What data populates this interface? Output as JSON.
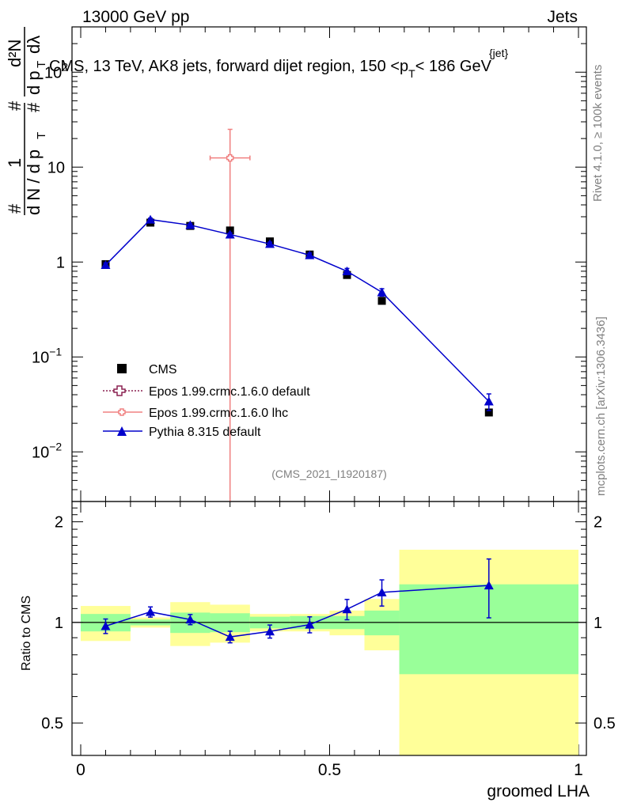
{
  "header": {
    "left": "13000 GeV pp",
    "right": "Jets"
  },
  "side_text": {
    "rivet": "Rivet 4.1.0, ≥ 100k events",
    "mcplots": "mcplots.cern.ch [arXiv:1306.3436]"
  },
  "title": {
    "main": "CMS, 13 TeV, AK8 jets, forward dijet region, 150 <p",
    "sub": "T",
    "sup": "{jet}",
    "tail": "< 186 GeV"
  },
  "ylabel": {
    "hash1": "#",
    "one": "1",
    "dN": "d N / d p",
    "T": "T",
    "hash2": "#",
    "d2N": "d²N",
    "hash3": "#",
    "dp": "d p",
    "T2": "T",
    "dl": "dλ"
  },
  "watermark": "(CMS_2021_I1920187)",
  "legend": [
    {
      "label": "CMS",
      "color": "#000000"
    },
    {
      "label": "Epos 1.99.crmc.1.6.0 default",
      "color": "#8b2252"
    },
    {
      "label": "Epos 1.99.crmc.1.6.0 lhc",
      "color": "#f08080"
    },
    {
      "label": "Pythia 8.315 default",
      "color": "#0000cc"
    }
  ],
  "ratio_ylabel": "Ratio to CMS",
  "xlabel": "groomed LHA",
  "colors": {
    "data": "#000000",
    "epos_default": "#8b2252",
    "epos_lhc": "#f08080",
    "pythia": "#0000cc",
    "band_stat": "#99ff99",
    "band_total": "#ffff99"
  },
  "chart_data": {
    "type": "scatter",
    "x_range": [
      0,
      1
    ],
    "main_ylim": [
      0.003,
      300
    ],
    "main_yscale": "log",
    "ratio_ylim": [
      0.4,
      2.3
    ],
    "ratio_yscale": "log",
    "x_ticks": [
      0,
      0.5,
      1
    ],
    "x_tick_labels": [
      "0",
      "0.5",
      "1"
    ],
    "main_y_ticks": [
      0.01,
      0.1,
      1,
      10,
      100
    ],
    "main_y_tick_labels": [
      {
        "b": "10",
        "e": "−2"
      },
      {
        "b": "10",
        "e": "−1"
      },
      {
        "b": "1",
        "e": ""
      },
      {
        "b": "10",
        "e": ""
      },
      {
        "b": "10",
        "e": "2"
      }
    ],
    "ratio_y_ticks": [
      0.5,
      1,
      2
    ],
    "ratio_y_tick_labels": [
      "0.5",
      "1",
      "2"
    ],
    "bins": [
      [
        0.0,
        0.1
      ],
      [
        0.1,
        0.18
      ],
      [
        0.18,
        0.26
      ],
      [
        0.26,
        0.34
      ],
      [
        0.34,
        0.42
      ],
      [
        0.42,
        0.5
      ],
      [
        0.5,
        0.57
      ],
      [
        0.57,
        0.64
      ],
      [
        0.64,
        1.0
      ]
    ],
    "cms": {
      "name": "CMS",
      "x": [
        0.05,
        0.14,
        0.22,
        0.3,
        0.38,
        0.46,
        0.535,
        0.605,
        0.82
      ],
      "y": [
        0.95,
        2.6,
        2.4,
        2.15,
        1.65,
        1.2,
        0.73,
        0.39,
        0.026
      ]
    },
    "epos_lhc": {
      "name": "Epos 1.99.crmc.1.6.0 lhc",
      "x": 0.3,
      "y": 12.5,
      "xerr": [
        0.26,
        0.34
      ],
      "yerr": [
        0.001,
        25
      ]
    },
    "pythia": {
      "name": "Pythia 8.315 default",
      "x": [
        0.05,
        0.14,
        0.22,
        0.3,
        0.38,
        0.46,
        0.535,
        0.605,
        0.82
      ],
      "y": [
        0.93,
        2.8,
        2.45,
        1.95,
        1.55,
        1.18,
        0.8,
        0.48,
        0.034
      ],
      "yerr_rel": [
        0.05,
        0.035,
        0.035,
        0.04,
        0.045,
        0.055,
        0.07,
        0.09,
        0.2
      ]
    },
    "ratio_pythia": [
      0.975,
      1.075,
      1.02,
      0.905,
      0.94,
      0.985,
      1.095,
      1.23,
      1.29
    ],
    "ratio_pythia_err": [
      0.05,
      0.035,
      0.035,
      0.04,
      0.045,
      0.055,
      0.07,
      0.09,
      0.2
    ],
    "band_stat": [
      [
        0.94,
        1.06
      ],
      [
        0.98,
        1.02
      ],
      [
        0.93,
        1.07
      ],
      [
        0.935,
        1.065
      ],
      [
        0.96,
        1.04
      ],
      [
        0.955,
        1.045
      ],
      [
        0.955,
        1.045
      ],
      [
        0.915,
        1.085
      ],
      [
        0.7,
        1.3
      ]
    ],
    "band_total": [
      [
        0.88,
        1.12
      ],
      [
        0.965,
        1.035
      ],
      [
        0.85,
        1.15
      ],
      [
        0.87,
        1.13
      ],
      [
        0.94,
        1.06
      ],
      [
        0.94,
        1.06
      ],
      [
        0.915,
        1.085
      ],
      [
        0.825,
        1.175
      ],
      [
        0.38,
        1.65
      ]
    ]
  }
}
